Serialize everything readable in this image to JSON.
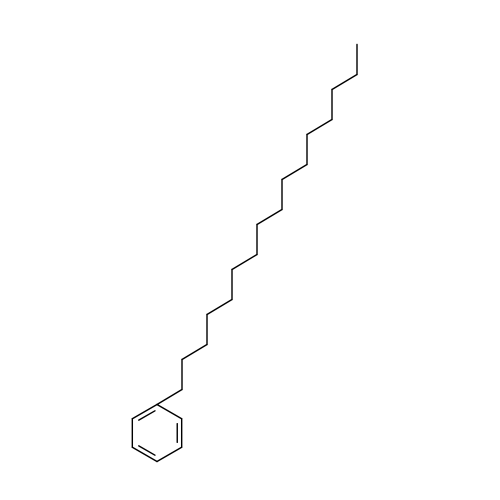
{
  "molecule": {
    "ring": "benzene",
    "chain_carbons": 16,
    "bond_color": "#000000",
    "background_color": "#ffffff"
  }
}
